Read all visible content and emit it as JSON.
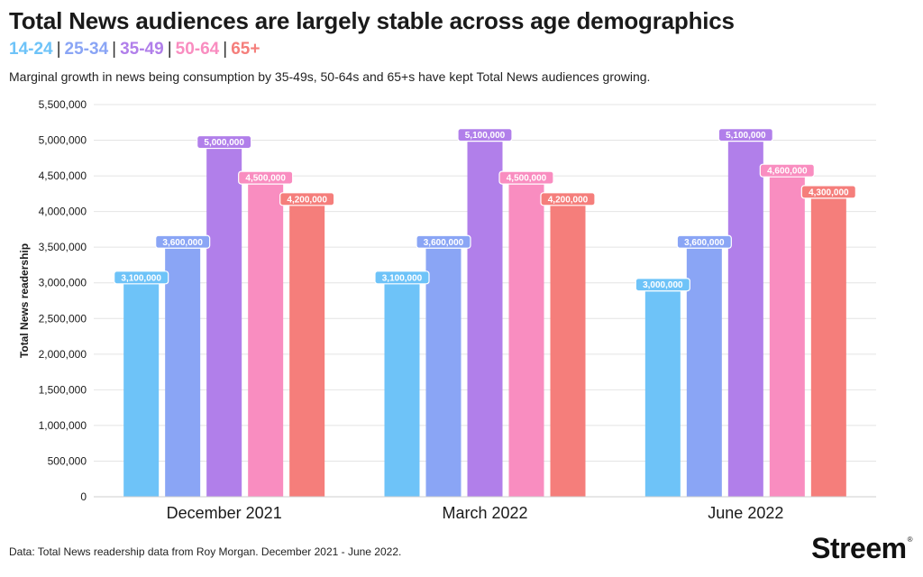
{
  "chart_data": {
    "type": "bar",
    "title": "Total News audiences are largely stable across age demographics",
    "subtitle": "Marginal growth in news being consumption by 35-49s, 50-64s and 65+s have kept Total News audiences growing.",
    "xlabel": "",
    "ylabel": "Total News readership",
    "ylim": [
      0,
      5500000
    ],
    "yticks": [
      "0",
      "500,000",
      "1,000,000",
      "1,500,000",
      "2,000,000",
      "2,500,000",
      "3,000,000",
      "3,500,000",
      "4,000,000",
      "4,500,000",
      "5,000,000",
      "5,500,000"
    ],
    "ytick_values": [
      0,
      500000,
      1000000,
      1500000,
      2000000,
      2500000,
      3000000,
      3500000,
      4000000,
      4500000,
      5000000,
      5500000
    ],
    "categories": [
      "December 2021",
      "March 2022",
      "June 2022"
    ],
    "grid": true,
    "series": [
      {
        "name": "14-24",
        "color": "#6EC3F8",
        "values": [
          3100000,
          3100000,
          3000000
        ],
        "labels": [
          "3,100,000",
          "3,100,000",
          "3,000,000"
        ]
      },
      {
        "name": "25-34",
        "color": "#8AA5F5",
        "values": [
          3600000,
          3600000,
          3600000
        ],
        "labels": [
          "3,600,000",
          "3,600,000",
          "3,600,000"
        ]
      },
      {
        "name": "35-49",
        "color": "#B17FEA",
        "values": [
          5000000,
          5100000,
          5100000
        ],
        "labels": [
          "5,000,000",
          "5,100,000",
          "5,100,000"
        ]
      },
      {
        "name": "50-64",
        "color": "#F98DC0",
        "values": [
          4500000,
          4500000,
          4600000
        ],
        "labels": [
          "4,500,000",
          "4,500,000",
          "4,600,000"
        ]
      },
      {
        "name": "65+",
        "color": "#F57E7B",
        "values": [
          4200000,
          4200000,
          4300000
        ],
        "labels": [
          "4,200,000",
          "4,200,000",
          "4,300,000"
        ]
      }
    ]
  },
  "legend_colors": {
    "14-24": "#6EC3F8",
    "25-34": "#8AA5F5",
    "35-49": "#B17FEA",
    "50-64": "#F98DC0",
    "65+": "#F57E7B"
  },
  "legend": {
    "separator": "|"
  },
  "footer": {
    "source": "Data: Total News readership data from Roy Morgan. December 2021 - June 2022."
  },
  "brand": {
    "name": "Streem",
    "mark": "®"
  }
}
